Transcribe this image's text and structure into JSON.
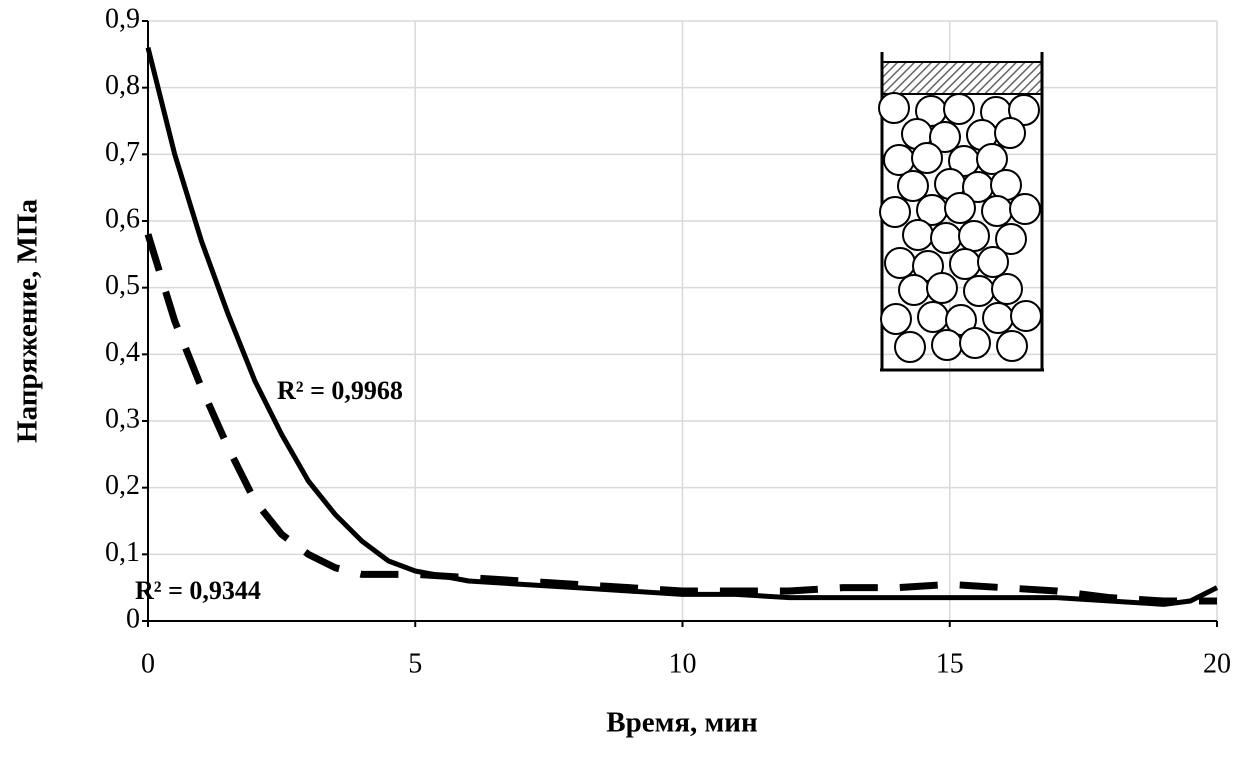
{
  "chart_data": {
    "type": "line",
    "x_label": "Время, мин",
    "y_label": "Напряжение, МПа",
    "annotations": [
      "R² = 0,9968",
      "R² = 0,9344"
    ],
    "x": [
      0,
      0.5,
      1,
      1.5,
      2,
      2.5,
      3,
      3.5,
      4,
      4.5,
      5,
      6,
      7,
      8,
      9,
      10,
      11,
      12,
      13,
      14,
      15,
      16,
      17,
      18,
      19,
      19.5,
      20
    ],
    "series": [
      {
        "color": "#000000",
        "style": "solid",
        "values": [
          0.86,
          0.7,
          0.57,
          0.46,
          0.36,
          0.28,
          0.21,
          0.16,
          0.12,
          0.09,
          0.075,
          0.06,
          0.055,
          0.05,
          0.045,
          0.04,
          0.04,
          0.035,
          0.035,
          0.035,
          0.035,
          0.035,
          0.035,
          0.03,
          0.025,
          0.03,
          0.05
        ]
      },
      {
        "color": "#000000",
        "style": "dashed",
        "values": [
          0.58,
          0.45,
          0.35,
          0.26,
          0.18,
          0.13,
          0.1,
          0.08,
          0.07,
          0.07,
          0.07,
          0.065,
          0.06,
          0.055,
          0.05,
          0.045,
          0.045,
          0.045,
          0.05,
          0.05,
          0.055,
          0.05,
          0.045,
          0.035,
          0.03,
          0.03,
          0.03
        ]
      }
    ],
    "xlim": [
      0,
      20
    ],
    "xticks": [
      0,
      5,
      10,
      15,
      20
    ],
    "ylim": [
      0,
      0.9
    ],
    "yticks": [
      0,
      {
        "value": 0.1,
        "label": "0,1"
      },
      {
        "value": 0.2,
        "label": "0,2"
      },
      {
        "value": 0.3,
        "label": "0,3"
      },
      {
        "value": 0.4,
        "label": "0,4"
      },
      {
        "value": 0.5,
        "label": "0,5"
      },
      {
        "value": 0.6,
        "label": "0,6"
      },
      {
        "value": 0.7,
        "label": "0,7"
      },
      {
        "value": 0.8,
        "label": "0,8"
      },
      {
        "value": 0.9,
        "label": "0,9"
      }
    ],
    "grid": true
  }
}
